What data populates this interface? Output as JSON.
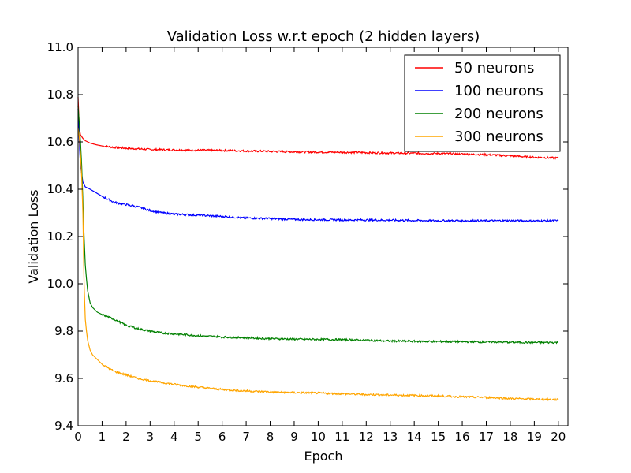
{
  "chart_data": {
    "type": "line",
    "title": "Validation Loss w.r.t epoch (2 hidden layers)",
    "xlabel": "Epoch",
    "ylabel": "Validation Loss",
    "xlim": [
      0,
      20.4
    ],
    "ylim": [
      9.4,
      11.0
    ],
    "xticks": [
      "0",
      "1",
      "2",
      "3",
      "4",
      "5",
      "6",
      "7",
      "8",
      "9",
      "10",
      "11",
      "12",
      "13",
      "14",
      "15",
      "16",
      "17",
      "18",
      "19",
      "20"
    ],
    "yticks": [
      "9.4",
      "9.6",
      "9.8",
      "10.0",
      "10.2",
      "10.4",
      "10.6",
      "10.8",
      "11.0"
    ],
    "grid": false,
    "legend_position": "top-right",
    "series": [
      {
        "name": "50 neurons",
        "color": "#ff0000",
        "x": [
          0,
          0.05,
          0.1,
          0.2,
          0.3,
          0.5,
          0.75,
          1,
          1.5,
          2,
          3,
          4,
          5,
          6,
          7,
          8,
          9,
          10,
          11,
          12,
          13,
          14,
          15,
          16,
          17,
          18,
          19,
          20
        ],
        "y": [
          10.79,
          10.66,
          10.63,
          10.615,
          10.605,
          10.595,
          10.588,
          10.583,
          10.577,
          10.573,
          10.568,
          10.566,
          10.565,
          10.564,
          10.562,
          10.56,
          10.558,
          10.557,
          10.556,
          10.555,
          10.553,
          10.552,
          10.551,
          10.549,
          10.546,
          10.541,
          10.535,
          10.532
        ]
      },
      {
        "name": "100 neurons",
        "color": "#0000ff",
        "x": [
          0,
          0.05,
          0.1,
          0.2,
          0.3,
          0.5,
          0.75,
          1,
          1.5,
          2,
          2.5,
          3,
          3.5,
          4,
          5,
          6,
          7,
          8,
          9,
          10,
          11,
          12,
          13,
          14,
          15,
          16,
          17,
          18,
          19,
          20
        ],
        "y": [
          10.74,
          10.6,
          10.5,
          10.43,
          10.41,
          10.4,
          10.385,
          10.37,
          10.345,
          10.335,
          10.325,
          10.31,
          10.3,
          10.295,
          10.29,
          10.285,
          10.278,
          10.276,
          10.272,
          10.271,
          10.27,
          10.27,
          10.269,
          10.268,
          10.267,
          10.267,
          10.267,
          10.267,
          10.266,
          10.267
        ]
      },
      {
        "name": "200 neurons",
        "color": "#008000",
        "x": [
          0,
          0.05,
          0.1,
          0.15,
          0.2,
          0.25,
          0.3,
          0.35,
          0.4,
          0.5,
          0.6,
          0.8,
          1,
          1.5,
          2,
          2.5,
          3,
          3.5,
          4,
          5,
          6,
          7,
          8,
          9,
          10,
          11,
          12,
          13,
          14,
          15,
          16,
          17,
          18,
          19,
          20
        ],
        "y": [
          10.75,
          10.68,
          10.6,
          10.5,
          10.35,
          10.2,
          10.08,
          10.02,
          9.97,
          9.92,
          9.9,
          9.88,
          9.87,
          9.85,
          9.825,
          9.81,
          9.8,
          9.792,
          9.788,
          9.781,
          9.775,
          9.772,
          9.768,
          9.766,
          9.765,
          9.764,
          9.762,
          9.758,
          9.757,
          9.756,
          9.755,
          9.754,
          9.753,
          9.752,
          9.752
        ]
      },
      {
        "name": "300 neurons",
        "color": "#ffa500",
        "x": [
          0,
          0.05,
          0.1,
          0.15,
          0.2,
          0.25,
          0.3,
          0.35,
          0.4,
          0.5,
          0.6,
          0.8,
          1,
          1.5,
          2,
          2.5,
          3,
          3.5,
          4,
          5,
          6,
          7,
          8,
          9,
          10,
          11,
          12,
          13,
          14,
          15,
          16,
          17,
          18,
          19,
          20
        ],
        "y": [
          10.66,
          10.62,
          10.55,
          10.45,
          10.3,
          10.0,
          9.85,
          9.8,
          9.76,
          9.72,
          9.7,
          9.68,
          9.66,
          9.63,
          9.615,
          9.6,
          9.59,
          9.582,
          9.575,
          9.563,
          9.553,
          9.547,
          9.543,
          9.54,
          9.538,
          9.535,
          9.532,
          9.53,
          9.528,
          9.526,
          9.522,
          9.52,
          9.515,
          9.512,
          9.51
        ]
      }
    ]
  }
}
